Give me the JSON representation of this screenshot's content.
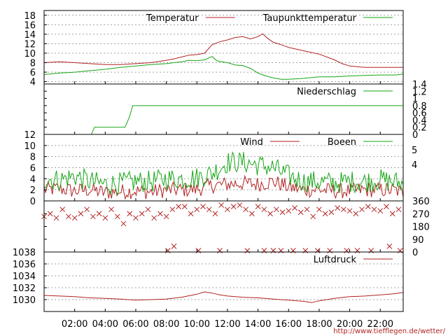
{
  "colors": {
    "red": "#b22222",
    "green": "#16a616",
    "frame": "#000000",
    "grid": "#a0a0a0"
  },
  "footer_url": "http://www.tiefflegen.de/wetter/",
  "x_axis": {
    "ticks": [
      "02:00",
      "04:00",
      "06:00",
      "08:00",
      "10:00",
      "12:00",
      "14:00",
      "16:00",
      "18:00",
      "20:00",
      "22:00"
    ],
    "hours": [
      2,
      4,
      6,
      8,
      10,
      12,
      14,
      16,
      18,
      20,
      22
    ],
    "range": [
      0,
      23.5
    ]
  },
  "chart_data": [
    {
      "type": "line",
      "panel": "temperature",
      "ylim": [
        3.5,
        19
      ],
      "yticks": [
        4,
        6,
        8,
        10,
        12,
        14,
        16,
        18
      ],
      "grid": true,
      "legend_position": "top-right",
      "series": [
        {
          "name": "Temperatur",
          "color": "red",
          "x": [
            0,
            1,
            2,
            3,
            4,
            5,
            6,
            7,
            8,
            8.5,
            9,
            9.5,
            10,
            10.5,
            11,
            11.5,
            12,
            12.5,
            13,
            13.5,
            14,
            14.3,
            14.6,
            15,
            15.5,
            16,
            17,
            18,
            19,
            19.5,
            20,
            21,
            22,
            23,
            23.5
          ],
          "y": [
            8.0,
            8.2,
            8.0,
            7.8,
            7.6,
            7.6,
            7.8,
            8.0,
            8.5,
            8.8,
            9.2,
            9.6,
            9.7,
            10.0,
            11.8,
            12.4,
            12.8,
            13.3,
            13.5,
            13.0,
            13.5,
            14.1,
            13.2,
            12.3,
            11.8,
            11.2,
            10.5,
            9.8,
            8.6,
            7.8,
            7.3,
            7.0,
            7.0,
            7.0,
            7.0
          ]
        },
        {
          "name": "Taupunkttemperatur",
          "color": "green",
          "x": [
            0,
            1,
            2,
            3,
            4,
            5,
            6,
            7,
            8,
            8.5,
            9,
            9.5,
            10,
            10.5,
            11,
            11.3,
            11.6,
            12,
            12.5,
            13,
            13.5,
            14,
            14.5,
            15,
            15.5,
            16,
            17,
            18,
            19,
            20,
            21,
            22,
            23,
            23.5
          ],
          "y": [
            5.5,
            5.8,
            6.0,
            6.3,
            6.6,
            7.0,
            7.3,
            7.6,
            7.8,
            8.0,
            8.2,
            8.5,
            8.4,
            8.6,
            9.3,
            8.4,
            8.2,
            8.0,
            7.5,
            7.4,
            6.8,
            5.8,
            5.2,
            4.8,
            4.5,
            4.5,
            4.7,
            5.0,
            5.0,
            5.2,
            5.3,
            5.4,
            5.4,
            5.6
          ]
        }
      ]
    },
    {
      "type": "line",
      "panel": "precipitation",
      "ylim": [
        0,
        1.4
      ],
      "yticks": [
        "0",
        "0.2",
        "0.4",
        "0.6",
        "0.8",
        "1",
        "1.2",
        "1.4"
      ],
      "grid": false,
      "legend_position": "top-right",
      "series": [
        {
          "name": "Niederschlag",
          "color": "green",
          "x": [
            3.1,
            3.3,
            5.3,
            5.6,
            5.8,
            23.5
          ],
          "y": [
            0.01,
            0.2,
            0.2,
            0.5,
            0.8,
            0.8
          ]
        }
      ]
    },
    {
      "type": "line",
      "panel": "wind",
      "ylim": [
        0,
        12
      ],
      "yticks": [
        0,
        2,
        4,
        6,
        8,
        10,
        12
      ],
      "right_labels": [
        "5",
        "4"
      ],
      "grid": true,
      "legend_position": "top-right",
      "series": [
        {
          "name": "Wind",
          "color": "red",
          "x": [
            0,
            1,
            2,
            3,
            4,
            5,
            6,
            7,
            8,
            9,
            10,
            11,
            12,
            13,
            14,
            15,
            16,
            17,
            18,
            19,
            20,
            21,
            22,
            23,
            23.5
          ],
          "y": [
            2.0,
            2.2,
            1.8,
            2.0,
            1.5,
            1.7,
            1.8,
            1.6,
            2.0,
            2.0,
            2.1,
            2.8,
            3.0,
            3.2,
            3.0,
            3.5,
            2.5,
            2.0,
            2.0,
            1.8,
            1.8,
            2.0,
            2.0,
            1.9,
            1.5
          ]
        },
        {
          "name": "Boeen",
          "color": "green",
          "x": [
            0,
            1,
            2,
            3,
            4,
            5,
            6,
            7,
            8,
            9,
            10,
            11,
            12,
            13,
            14,
            15,
            16,
            17,
            18,
            19,
            20,
            21,
            22,
            23,
            23.5
          ],
          "y": [
            4.0,
            3.8,
            4.5,
            3.5,
            3.0,
            3.2,
            3.5,
            3.5,
            4.0,
            4.0,
            4.2,
            5.0,
            7.0,
            7.0,
            6.5,
            6.0,
            4.5,
            3.5,
            3.5,
            3.2,
            3.5,
            3.5,
            3.8,
            3.4,
            3.0
          ]
        }
      ]
    },
    {
      "type": "scatter",
      "panel": "wind-direction",
      "ylim": [
        0,
        360
      ],
      "yticks": [
        0,
        90,
        180,
        270,
        360
      ],
      "grid": false,
      "series": [
        {
          "color": "red",
          "x": [
            0,
            0.4,
            0.8,
            1.2,
            1.6,
            2.0,
            2.4,
            2.8,
            3.2,
            3.6,
            4.0,
            4.4,
            4.8,
            5.2,
            5.6,
            6.0,
            6.4,
            6.8,
            7.2,
            7.6,
            8.0,
            8.4,
            8.8,
            9.2,
            9.6,
            10.0,
            10.4,
            10.8,
            11.2,
            11.6,
            12.0,
            12.4,
            12.8,
            13.2,
            13.6,
            14.0,
            14.4,
            14.8,
            15.2,
            15.6,
            16.0,
            16.4,
            16.8,
            17.2,
            17.6,
            18.0,
            18.4,
            18.8,
            19.2,
            19.6,
            20.0,
            20.4,
            20.8,
            21.2,
            21.6,
            22.0,
            22.4,
            22.8,
            23.2,
            8.1,
            8.5,
            10.1,
            11.5,
            13.3,
            14.4,
            15.0,
            15.5,
            16.3,
            17.1,
            17.9,
            18.7,
            19.8,
            20.5,
            21.4,
            22.6,
            23.3
          ],
          "y": [
            250,
            270,
            240,
            300,
            250,
            240,
            270,
            300,
            250,
            270,
            240,
            300,
            250,
            200,
            270,
            240,
            270,
            300,
            240,
            270,
            250,
            300,
            320,
            320,
            270,
            300,
            320,
            300,
            270,
            330,
            300,
            320,
            330,
            300,
            270,
            320,
            300,
            270,
            300,
            280,
            290,
            310,
            280,
            300,
            250,
            300,
            270,
            280,
            310,
            300,
            290,
            270,
            300,
            320,
            300,
            290,
            320,
            270,
            300,
            10,
            40,
            10,
            10,
            10,
            10,
            10,
            10,
            10,
            10,
            10,
            10,
            10,
            10,
            10,
            40,
            10
          ]
        }
      ]
    },
    {
      "type": "line",
      "panel": "pressure",
      "ylim": [
        1028,
        1038
      ],
      "yticks": [
        1030,
        1032,
        1034,
        1036,
        1038
      ],
      "grid": true,
      "legend_position": "top-right",
      "series": [
        {
          "name": "Luftdruck",
          "color": "red",
          "x": [
            0,
            1,
            2,
            3,
            4,
            5,
            6,
            7,
            8,
            9,
            10,
            10.5,
            11,
            11.5,
            12,
            13,
            14,
            15,
            16,
            17,
            17.5,
            18,
            19,
            20,
            21,
            22,
            23,
            23.5
          ],
          "y": [
            1030.7,
            1030.6,
            1030.5,
            1030.3,
            1030.2,
            1030.1,
            1029.9,
            1030.0,
            1030.1,
            1030.4,
            1030.9,
            1031.3,
            1031.1,
            1030.8,
            1030.6,
            1030.4,
            1030.3,
            1030.1,
            1029.9,
            1029.7,
            1029.5,
            1029.8,
            1030.2,
            1030.5,
            1030.6,
            1030.8,
            1031.0,
            1031.2
          ]
        }
      ]
    }
  ]
}
